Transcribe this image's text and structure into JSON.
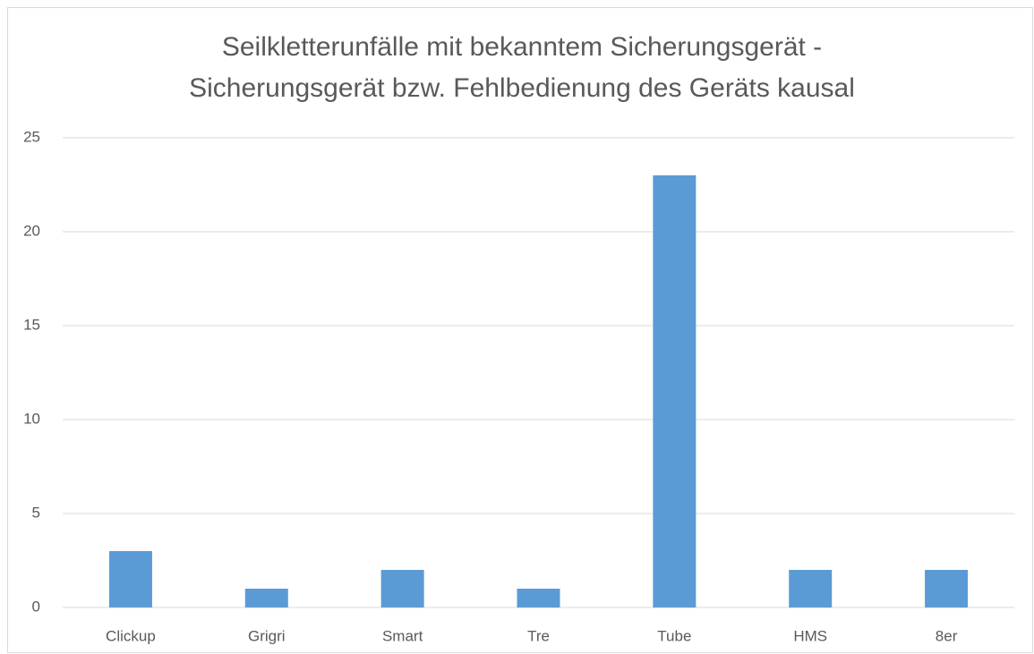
{
  "chart_data": {
    "type": "bar",
    "title": "Seilkletterunfälle mit bekanntem Sicherungsgerät - Sicherungsgerät bzw. Fehlbedienung des Geräts kausal",
    "categories": [
      "Clickup",
      "Grigri",
      "Smart",
      "Tre",
      "Tube",
      "HMS",
      "8er"
    ],
    "values": [
      3,
      1,
      2,
      1,
      23,
      2,
      2
    ],
    "color": "#5b9bd5",
    "ylim": [
      0,
      25
    ],
    "yticks": [
      0,
      5,
      10,
      15,
      20,
      25
    ],
    "grid": true
  }
}
